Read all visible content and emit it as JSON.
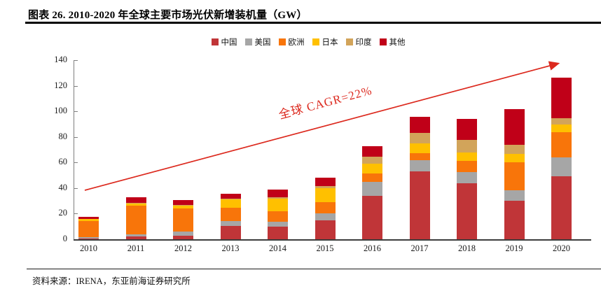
{
  "page": {
    "title": "图表 26. 2010-2020 年全球主要市场光伏新增装机量（GW）",
    "source": "资料来源：IRENA，东亚前海证券研究所"
  },
  "annotation": {
    "cagr_label": "全球 CAGR=22%",
    "arrow_color": "#DC291E"
  },
  "chart_data": {
    "type": "bar",
    "stacked": true,
    "title": "2010-2020 年全球主要市场光伏新增装机量（GW）",
    "xlabel": "",
    "ylabel": "GW",
    "ylim": [
      0,
      140
    ],
    "ytick_step": 20,
    "grid": false,
    "legend_position": "top",
    "categories": [
      "2010",
      "2011",
      "2012",
      "2013",
      "2014",
      "2015",
      "2016",
      "2017",
      "2018",
      "2019",
      "2020"
    ],
    "series": [
      {
        "name": "中国",
        "color": "#C03538",
        "values": [
          0.5,
          2,
          2.5,
          10.5,
          10,
          15,
          34,
          53,
          44,
          30,
          49
        ]
      },
      {
        "name": "美国",
        "color": "#A6A6A6",
        "values": [
          1,
          2,
          3.5,
          4,
          3.5,
          5.5,
          11,
          9,
          8.5,
          8.5,
          15
        ]
      },
      {
        "name": "欧洲",
        "color": "#F8750A",
        "values": [
          13,
          22,
          18,
          10,
          8.5,
          8.5,
          6.5,
          5.5,
          9,
          21.5,
          19.5
        ]
      },
      {
        "name": "日本",
        "color": "#FFC000",
        "values": [
          1.5,
          2,
          2.5,
          6.5,
          10,
          11,
          7.5,
          7.5,
          6.5,
          6.5,
          6
        ]
      },
      {
        "name": "印度",
        "color": "#D2A45A",
        "values": [
          0,
          0.2,
          0.2,
          0.5,
          1,
          1.5,
          5.5,
          8,
          9.5,
          7.5,
          5
        ]
      },
      {
        "name": "其他",
        "color": "#C00018",
        "values": [
          1.5,
          4.5,
          4,
          4,
          6,
          6.5,
          8,
          13,
          16.5,
          28,
          32
        ]
      }
    ],
    "totals": [
      17.5,
      32.7,
      30.7,
      35.5,
      39,
      48,
      72.5,
      96,
      94,
      102,
      126.5
    ]
  }
}
